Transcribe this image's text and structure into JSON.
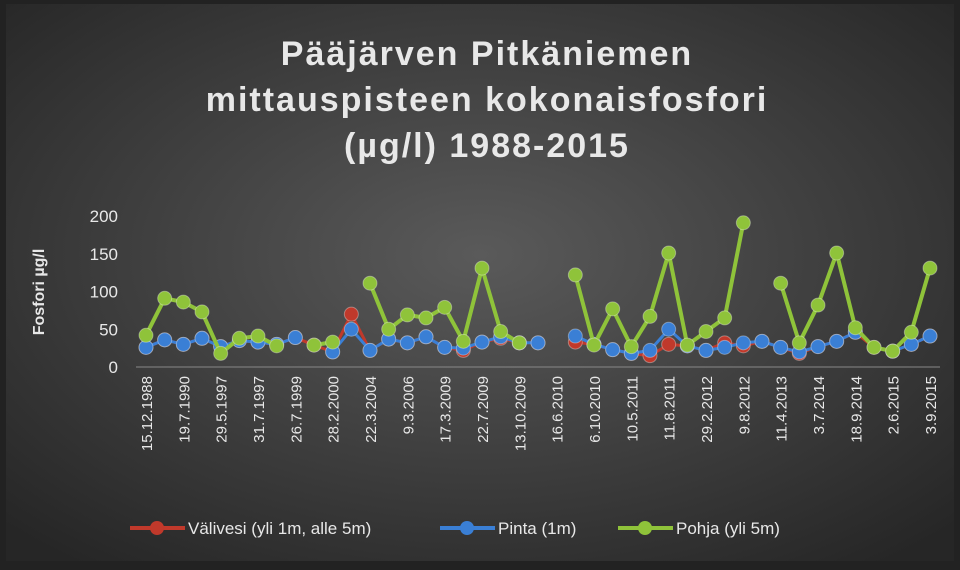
{
  "chart_data": {
    "type": "line",
    "title": "Pääjärven Pitkäniemen mittauspisteen kokonaisfosfori (µg/l) 1988-2015",
    "y_label": "Fosfori µg/l",
    "categories": [
      "15.12.1988",
      null,
      "19.7.1990",
      null,
      "29.5.1997",
      null,
      "31.7.1997",
      null,
      "26.7.1999",
      null,
      "28.2.2000",
      null,
      "22.3.2004",
      null,
      "9.3.2006",
      null,
      "17.3.2009",
      null,
      "22.7.2009",
      null,
      "13.10.2009",
      null,
      "16.6.2010",
      null,
      "6.10.2010",
      null,
      "10.5.2011",
      null,
      "11.8.2011",
      null,
      "29.2.2012",
      null,
      "9.8.2012",
      null,
      "11.4.2013",
      null,
      "3.7.2014",
      null,
      "18.9.2014",
      null,
      "2.6.2015",
      null,
      "3.9.2015"
    ],
    "series": [
      {
        "name": "Välivesi (yli 1m, alle 5m)",
        "color": "#c0392b",
        "values": [
          26,
          36,
          30,
          38,
          27,
          35,
          33,
          30,
          39,
          29,
          20,
          70,
          22,
          37,
          32,
          40,
          26,
          22,
          33,
          38,
          32,
          32,
          null,
          33,
          30,
          23,
          18,
          15,
          30,
          28,
          22,
          32,
          28,
          34,
          26,
          18,
          27,
          34,
          46,
          26,
          21,
          30,
          41
        ]
      },
      {
        "name": "Pinta (1m)",
        "color": "#3a7fd5",
        "values": [
          26,
          36,
          30,
          38,
          27,
          35,
          33,
          30,
          39,
          null,
          20,
          50,
          22,
          37,
          32,
          40,
          26,
          25,
          33,
          40,
          32,
          32,
          null,
          41,
          30,
          23,
          18,
          22,
          50,
          28,
          22,
          26,
          32,
          34,
          26,
          20,
          27,
          34,
          46,
          null,
          21,
          30,
          41
        ]
      },
      {
        "name": "Pohja (yli 5m)",
        "color": "#8fc33a",
        "values": [
          42,
          91,
          86,
          73,
          18,
          38,
          41,
          28,
          null,
          29,
          33,
          null,
          111,
          50,
          69,
          65,
          79,
          34,
          131,
          47,
          32,
          null,
          null,
          122,
          29,
          77,
          27,
          67,
          151,
          29,
          47,
          65,
          191,
          null,
          111,
          32,
          82,
          151,
          52,
          26,
          21,
          46,
          131
        ]
      }
    ],
    "ylim": [
      0,
      200
    ],
    "yticks": [
      0,
      50,
      100,
      150,
      200
    ],
    "legend": "bottom"
  }
}
